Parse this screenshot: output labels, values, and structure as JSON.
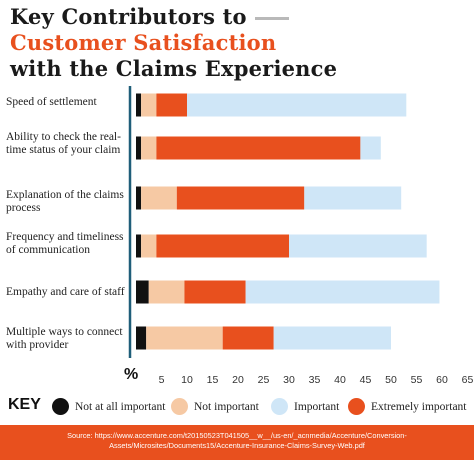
{
  "title": {
    "line1": "Key Contributors to",
    "line2": "Customer Satisfaction",
    "line3": "with the Claims Experience"
  },
  "colors": {
    "not_at_all_important": "#111111",
    "not_important": "#f6c9a4",
    "important": "#cfe6f7",
    "extremely_important": "#e8501e",
    "axis_line": "#1f5e79"
  },
  "axis_unit_label": "%",
  "chart_data": {
    "type": "bar",
    "orientation": "horizontal",
    "stacked": true,
    "categories": [
      "Speed of settlement",
      "Ability to check the real-time status of your claim",
      "Explanation of the claims process",
      "Frequency and timeliness of communication",
      "Empathy and care of staff",
      "Multiple ways to connect with provider"
    ],
    "series": [
      {
        "name": "Not at all important",
        "values": [
          1,
          1,
          1,
          1,
          2.5,
          2
        ]
      },
      {
        "name": "Not important",
        "values": [
          3,
          3,
          7,
          3,
          7,
          15
        ]
      },
      {
        "name": "Important",
        "values": [
          43,
          4,
          19,
          27,
          38,
          23
        ]
      },
      {
        "name": "Extremely important",
        "values": [
          6,
          40,
          25,
          26,
          12,
          10
        ]
      }
    ],
    "stack_order": [
      "Not at all important",
      "Not important",
      "Extremely important",
      "Important"
    ],
    "xlim": [
      0,
      65
    ],
    "xticks": [
      "5",
      "10",
      "15",
      "20",
      "25",
      "30",
      "35",
      "40",
      "45",
      "50",
      "55",
      "60",
      "65"
    ],
    "grid": false,
    "legend_placement": "bottom"
  },
  "key": {
    "title": "KEY",
    "items": [
      {
        "label": "Not at all important"
      },
      {
        "label": "Not important"
      },
      {
        "label": "Important"
      },
      {
        "label": "Extremely important"
      }
    ]
  },
  "source_text": "Source: https://www.accenture.com/t20150523T041505__w__/us-en/_acnmedia/Accenture/Conversion-Assets/Microsites/Documents15/Accenture-Insurance-Claims-Survey-Web.pdf"
}
